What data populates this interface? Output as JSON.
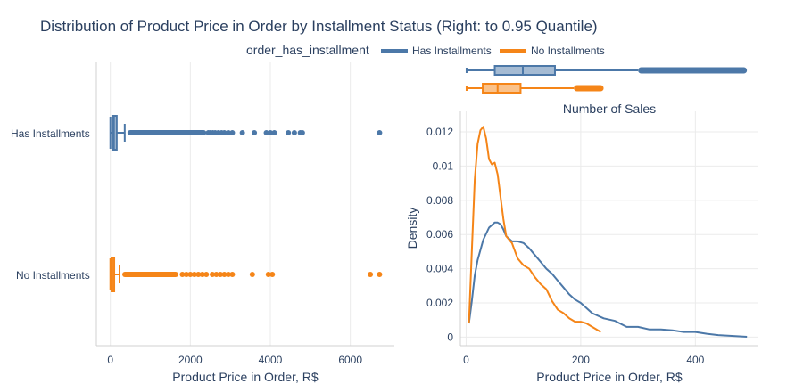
{
  "title": "Distribution of Product Price in Order by Installment Status (Right: to 0.95 Quantile)",
  "legend": {
    "title": "order_has_installment",
    "placement": "top-center",
    "items": [
      {
        "name": "Has Installments",
        "color": "#4c78a8"
      },
      {
        "name": "No Installments",
        "color": "#f58518"
      }
    ]
  },
  "chart_data": [
    {
      "type": "box",
      "orientation": "horizontal",
      "categories": [
        "Has Installments",
        "No Installments"
      ],
      "xlabel": "Product Price in Order, R$",
      "xlim": [
        -350,
        7100
      ],
      "xticks": [
        0,
        2000,
        4000,
        6000
      ],
      "grid": true,
      "series": [
        {
          "name": "Has Installments",
          "color": "#4c78a8",
          "min": 0.85,
          "q1": 50,
          "median": 90,
          "q3": 160,
          "upper_fence": 360,
          "outliers_dense_to": 2400,
          "outliers": [
            2450,
            2500,
            2560,
            2620,
            2700,
            2780,
            2850,
            2950,
            3050,
            3300,
            3600,
            3900,
            4000,
            4100,
            4450,
            4600,
            4750,
            4800,
            6730
          ]
        },
        {
          "name": "No Installments",
          "color": "#f58518",
          "min": 0.85,
          "q1": 30,
          "median": 50,
          "q3": 95,
          "upper_fence": 230,
          "outliers_dense_to": 1700,
          "outliers": [
            1800,
            1900,
            2000,
            2100,
            2200,
            2300,
            2400,
            2550,
            2650,
            2750,
            2850,
            2950,
            3050,
            3550,
            3950,
            4050,
            6500,
            6730
          ]
        }
      ]
    },
    {
      "type": "box",
      "orientation": "horizontal",
      "note_position": "marginal",
      "xlim": [
        -10,
        510
      ],
      "series": [
        {
          "name": "Has Installments",
          "color": "#4c78a8",
          "min": 0.85,
          "q1": 50,
          "median": 99,
          "q3": 155,
          "upper_fence": 300,
          "outliers_dense_to": 490,
          "outliers": []
        },
        {
          "name": "No Installments",
          "color": "#f58518",
          "min": 0.85,
          "q1": 29,
          "median": 55,
          "q3": 95,
          "upper_fence": 188,
          "outliers_dense_to": 240,
          "outliers": []
        }
      ]
    },
    {
      "type": "line",
      "title": "Number of Sales",
      "xlabel": "Product Price in Order, R$",
      "ylabel": "Density",
      "xlim": [
        -10,
        510
      ],
      "ylim": [
        -0.0005,
        0.0132
      ],
      "xticks": [
        0,
        200,
        400
      ],
      "yticks": [
        0,
        0.002,
        0.004,
        0.006,
        0.008,
        0.01,
        0.012
      ],
      "grid": true,
      "series": [
        {
          "name": "Has Installments",
          "color": "#4c78a8",
          "x": [
            5,
            10,
            15,
            20,
            30,
            40,
            50,
            55,
            60,
            65,
            70,
            80,
            90,
            100,
            110,
            120,
            130,
            140,
            150,
            160,
            170,
            180,
            190,
            200,
            210,
            220,
            240,
            260,
            280,
            300,
            320,
            340,
            360,
            380,
            400,
            420,
            440,
            460,
            480,
            490
          ],
          "y": [
            0.0008,
            0.0021,
            0.0036,
            0.0045,
            0.0057,
            0.0064,
            0.0067,
            0.0067,
            0.0066,
            0.0063,
            0.0059,
            0.0056,
            0.0056,
            0.0055,
            0.0052,
            0.0048,
            0.0044,
            0.004,
            0.0037,
            0.0033,
            0.0029,
            0.0025,
            0.0022,
            0.002,
            0.0017,
            0.0014,
            0.0011,
            0.00095,
            0.0006,
            0.0006,
            0.00045,
            0.00045,
            0.0004,
            0.0003,
            0.0003,
            0.0002,
            0.00012,
            8e-05,
            4e-05,
            2e-05
          ]
        },
        {
          "name": "No Installments",
          "color": "#f58518",
          "x": [
            5,
            10,
            15,
            20,
            25,
            30,
            35,
            40,
            45,
            50,
            55,
            60,
            65,
            70,
            80,
            90,
            100,
            110,
            120,
            130,
            140,
            150,
            160,
            170,
            180,
            190,
            200,
            210,
            220,
            230,
            235
          ],
          "y": [
            0.0008,
            0.005,
            0.0092,
            0.0113,
            0.0121,
            0.0123,
            0.0116,
            0.0104,
            0.0101,
            0.0102,
            0.0095,
            0.0082,
            0.0069,
            0.0059,
            0.0055,
            0.0046,
            0.0042,
            0.004,
            0.0035,
            0.0031,
            0.0028,
            0.0021,
            0.0016,
            0.0014,
            0.0011,
            0.0009,
            0.0009,
            0.0008,
            0.0006,
            0.0004,
            0.0003
          ]
        }
      ]
    }
  ]
}
